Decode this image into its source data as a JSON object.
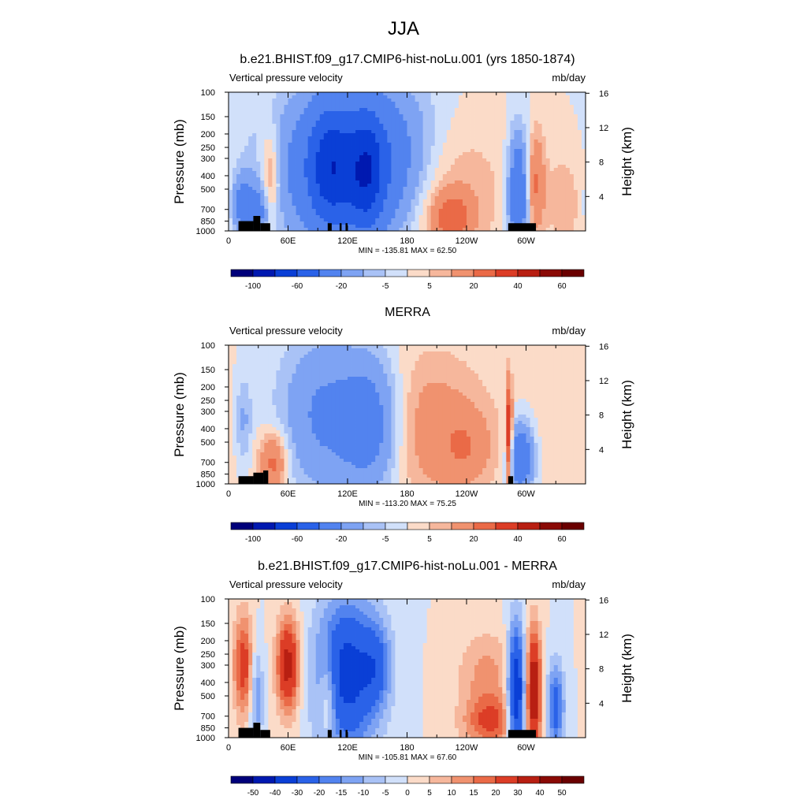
{
  "figure": {
    "title": "JJA"
  },
  "colors": {
    "ocean_black": "#000000",
    "diverging_full_scale": [
      "#00007a",
      "#0019b0",
      "#0a3fd6",
      "#2a62e8",
      "#5283ef",
      "#7ea3f3",
      "#a9c2f6",
      "#d1e0fa",
      "#fbdbc8",
      "#f6b79c",
      "#f0926f",
      "#ea6a47",
      "#dc3d26",
      "#b81f12",
      "#8a0a05",
      "#6a0000"
    ]
  },
  "chart_data": [
    {
      "type": "heatmap",
      "name": "model",
      "title": "b.e21.BHIST.f09_g17.CMIP6-hist-noLu.001 (yrs 1850-1874)",
      "left_label": "Vertical pressure velocity",
      "right_label": "mb/day",
      "ylabel": "Pressure (mb)",
      "y2label": "Height (km)",
      "x_ticks": [
        "0",
        "60E",
        "120E",
        "180",
        "120W",
        "60W"
      ],
      "x_tick_lon": [
        0,
        60,
        120,
        180,
        240,
        300
      ],
      "xlim": [
        0,
        360
      ],
      "y_ticks": [
        "100",
        "150",
        "200",
        "250",
        "300",
        "400",
        "500",
        "700",
        "850",
        "1000"
      ],
      "y_tick_values": [
        100,
        150,
        200,
        250,
        300,
        400,
        500,
        700,
        850,
        1000
      ],
      "ylim": [
        1000,
        100
      ],
      "y_scale": "log",
      "y2_ticks": [
        "16",
        "12",
        "8",
        "4"
      ],
      "y2_tick_values": [
        16,
        12,
        8,
        4
      ],
      "minmax": "MIN = -135.81  MAX =  62.50",
      "colorbar_labels": [
        "-100",
        "-60",
        "-20",
        "-5",
        "5",
        "20",
        "40",
        "60"
      ],
      "colorbar_levels": [
        -120,
        -100,
        -80,
        -60,
        -40,
        -20,
        -10,
        -5,
        0,
        5,
        10,
        20,
        30,
        40,
        50,
        60,
        80
      ],
      "land_cells": [
        [
          10,
          25,
          850
        ],
        [
          25,
          32,
          780
        ],
        [
          32,
          42,
          880
        ],
        [
          100,
          104,
          880
        ],
        [
          112,
          114,
          880
        ],
        [
          118,
          120,
          880
        ],
        [
          282,
          310,
          880
        ]
      ],
      "features": [
        {
          "lon": 140,
          "p": 350,
          "slon": 55,
          "sp": 0.9,
          "a": -60
        },
        {
          "lon": 140,
          "p": 400,
          "slon": 12,
          "sp": 0.7,
          "a": -35
        },
        {
          "lon": 102,
          "p": 350,
          "slon": 15,
          "sp": 0.7,
          "a": -35
        },
        {
          "lon": 200,
          "p": 450,
          "slon": 45,
          "sp": 0.9,
          "a": 28
        },
        {
          "lon": 225,
          "p": 800,
          "slon": 14,
          "sp": 0.3,
          "a": 22
        },
        {
          "lon": 42,
          "p": 400,
          "slon": 7,
          "sp": 0.55,
          "a": 20
        },
        {
          "lon": 15,
          "p": 650,
          "slon": 8,
          "sp": 0.35,
          "a": -28
        },
        {
          "lon": 32,
          "p": 700,
          "slon": 6,
          "sp": 0.3,
          "a": -20
        },
        {
          "lon": 292,
          "p": 550,
          "slon": 7,
          "sp": 0.7,
          "a": -40
        },
        {
          "lon": 310,
          "p": 450,
          "slon": 6,
          "sp": 0.6,
          "a": 20
        },
        {
          "lon": 340,
          "p": 600,
          "slon": 16,
          "sp": 0.7,
          "a": 8
        }
      ]
    },
    {
      "type": "heatmap",
      "name": "obs",
      "title": "MERRA",
      "left_label": "Vertical pressure velocity",
      "right_label": "mb/day",
      "ylabel": "Pressure (mb)",
      "y2label": "Height (km)",
      "x_ticks": [
        "0",
        "60E",
        "120E",
        "180",
        "120W",
        "60W"
      ],
      "x_tick_lon": [
        0,
        60,
        120,
        180,
        240,
        300
      ],
      "xlim": [
        0,
        360
      ],
      "y_ticks": [
        "100",
        "150",
        "200",
        "250",
        "300",
        "400",
        "500",
        "700",
        "850",
        "1000"
      ],
      "y_tick_values": [
        100,
        150,
        200,
        250,
        300,
        400,
        500,
        700,
        850,
        1000
      ],
      "ylim": [
        1000,
        100
      ],
      "y_scale": "log",
      "y2_ticks": [
        "16",
        "12",
        "8",
        "4"
      ],
      "y2_tick_values": [
        16,
        12,
        8,
        4
      ],
      "minmax": "MIN = -113.20  MAX =  75.25",
      "colorbar_labels": [
        "-100",
        "-60",
        "-20",
        "-5",
        "5",
        "20",
        "40",
        "60"
      ],
      "colorbar_levels": [
        -120,
        -100,
        -80,
        -60,
        -40,
        -20,
        -10,
        -5,
        0,
        5,
        10,
        20,
        30,
        40,
        50,
        60,
        80
      ],
      "land_cells": [
        [
          10,
          25,
          880
        ],
        [
          25,
          35,
          830
        ],
        [
          35,
          40,
          800
        ],
        [
          282,
          287,
          880
        ]
      ],
      "features": [
        {
          "lon": 95,
          "p": 320,
          "slon": 30,
          "sp": 0.9,
          "a": -22
        },
        {
          "lon": 145,
          "p": 380,
          "slon": 22,
          "sp": 0.8,
          "a": -30
        },
        {
          "lon": 200,
          "p": 400,
          "slon": 45,
          "sp": 0.9,
          "a": 15
        },
        {
          "lon": 240,
          "p": 550,
          "slon": 18,
          "sp": 0.4,
          "a": 12
        },
        {
          "lon": 45,
          "p": 700,
          "slon": 10,
          "sp": 0.35,
          "a": 25
        },
        {
          "lon": 15,
          "p": 350,
          "slon": 6,
          "sp": 0.5,
          "a": -12
        },
        {
          "lon": 283,
          "p": 450,
          "slon": 2,
          "sp": 0.6,
          "a": 45
        },
        {
          "lon": 295,
          "p": 650,
          "slon": 9,
          "sp": 0.4,
          "a": -38
        },
        {
          "lon": 340,
          "p": 500,
          "slon": 25,
          "sp": 0.9,
          "a": 4
        }
      ]
    },
    {
      "type": "heatmap",
      "name": "diff",
      "title": "b.e21.BHIST.f09_g17.CMIP6-hist-noLu.001 - MERRA",
      "left_label": "Vertical pressure velocity",
      "right_label": "mb/day",
      "ylabel": "Pressure (mb)",
      "y2label": "Height (km)",
      "x_ticks": [
        "0",
        "60E",
        "120E",
        "180",
        "120W",
        "60W"
      ],
      "x_tick_lon": [
        0,
        60,
        120,
        180,
        240,
        300
      ],
      "xlim": [
        0,
        360
      ],
      "y_ticks": [
        "100",
        "150",
        "200",
        "250",
        "300",
        "400",
        "500",
        "700",
        "850",
        "1000"
      ],
      "y_tick_values": [
        100,
        150,
        200,
        250,
        300,
        400,
        500,
        700,
        850,
        1000
      ],
      "ylim": [
        1000,
        100
      ],
      "y_scale": "log",
      "y2_ticks": [
        "16",
        "12",
        "8",
        "4"
      ],
      "y2_tick_values": [
        16,
        12,
        8,
        4
      ],
      "minmax": "MIN = -105.81  MAX =  67.60",
      "colorbar_labels": [
        "-50",
        "-40",
        "-30",
        "-20",
        "-15",
        "-10",
        "-5",
        "0",
        "5",
        "10",
        "15",
        "20",
        "30",
        "40",
        "50"
      ],
      "colorbar_levels": [
        -60,
        -50,
        -40,
        -30,
        -20,
        -15,
        -10,
        -5,
        0,
        5,
        10,
        15,
        20,
        30,
        40,
        50,
        60
      ],
      "land_cells": [
        [
          10,
          25,
          850
        ],
        [
          25,
          32,
          780
        ],
        [
          32,
          42,
          880
        ],
        [
          100,
          104,
          880
        ],
        [
          112,
          114,
          880
        ],
        [
          118,
          120,
          880
        ],
        [
          282,
          310,
          880
        ]
      ],
      "features": [
        {
          "lon": 15,
          "p": 300,
          "slon": 7,
          "sp": 0.6,
          "a": 25
        },
        {
          "lon": 60,
          "p": 300,
          "slon": 8,
          "sp": 0.55,
          "a": 35
        },
        {
          "lon": 28,
          "p": 500,
          "slon": 5,
          "sp": 0.6,
          "a": -15
        },
        {
          "lon": 120,
          "p": 350,
          "slon": 22,
          "sp": 0.9,
          "a": -35
        },
        {
          "lon": 150,
          "p": 300,
          "slon": 10,
          "sp": 0.5,
          "a": -15
        },
        {
          "lon": 100,
          "p": 500,
          "slon": 6,
          "sp": 0.5,
          "a": 15
        },
        {
          "lon": 260,
          "p": 350,
          "slon": 20,
          "sp": 0.5,
          "a": 12
        },
        {
          "lon": 265,
          "p": 780,
          "slon": 20,
          "sp": 0.3,
          "a": 20
        },
        {
          "lon": 290,
          "p": 500,
          "slon": 6,
          "sp": 0.8,
          "a": -45
        },
        {
          "lon": 308,
          "p": 450,
          "slon": 5,
          "sp": 0.7,
          "a": 40
        },
        {
          "lon": 330,
          "p": 600,
          "slon": 6,
          "sp": 0.5,
          "a": -25
        }
      ]
    }
  ]
}
